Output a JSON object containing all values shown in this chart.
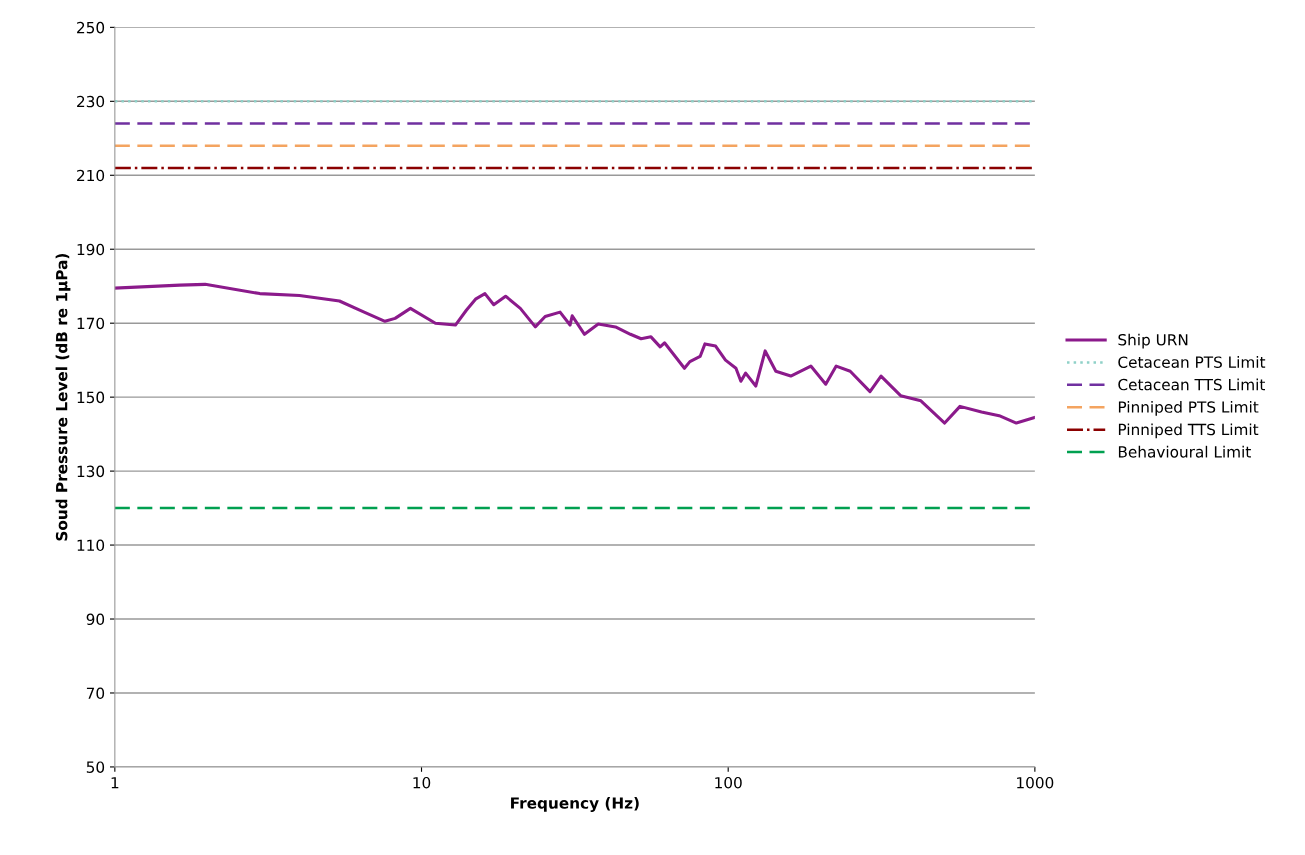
{
  "chart_data": {
    "type": "line",
    "xlabel": "Frequency (Hz)",
    "ylabel": "Soud Pressure Level (dB re 1µPa)",
    "log": "x",
    "xlim": [
      1,
      1000
    ],
    "xticks": [
      1,
      10,
      100,
      1000
    ],
    "ylim": [
      50,
      250
    ],
    "yticks": [
      50,
      70,
      90,
      110,
      130,
      150,
      170,
      190,
      210,
      230,
      250
    ],
    "grid": "y",
    "legend": "right",
    "series": [
      {
        "name": "Ship URN",
        "color": "#8b1a8b",
        "line_style": "solid",
        "x": [
          1,
          1.63,
          1.97,
          2.97,
          4.0,
          5.4,
          6.5,
          7.6,
          8.2,
          9.2,
          11.1,
          12.9,
          14.0,
          15,
          16.1,
          17.2,
          18.8,
          21,
          23.5,
          25.3,
          28.3,
          30.5,
          31,
          34,
          37.7,
          42.9,
          48,
          52,
          56,
          60,
          62,
          72,
          75,
          81,
          84,
          91,
          98,
          106,
          110,
          114,
          123,
          132,
          143,
          160,
          186,
          208,
          225,
          250,
          290,
          315,
          365,
          425,
          508,
          570,
          670,
          765,
          870,
          1000
        ],
        "values": [
          179.5,
          180.3,
          180.5,
          178,
          177.5,
          176,
          173,
          170.5,
          171.3,
          174,
          170,
          169.5,
          173.5,
          176.5,
          178,
          175,
          177.3,
          174,
          169,
          171.8,
          173,
          169.5,
          172,
          167,
          169.8,
          169,
          167,
          165.8,
          166.3,
          163.6,
          164.7,
          157.8,
          159.6,
          161,
          164.4,
          163.8,
          160,
          157.8,
          154.3,
          156.5,
          153,
          162.5,
          157,
          155.7,
          158.4,
          153.5,
          158.4,
          157,
          151.5,
          155.7,
          150.4,
          149,
          143,
          147.5,
          146,
          145,
          143,
          144.5
        ]
      },
      {
        "name": "Cetacean PTS Limit",
        "color": "#8fd1c8",
        "line_style": "dotted",
        "x": [
          1,
          1000
        ],
        "values": [
          230,
          230
        ]
      },
      {
        "name": "Cetacean TTS Limit",
        "color": "#7030a0",
        "line_style": "dashed",
        "x": [
          1,
          1000
        ],
        "values": [
          224,
          224
        ]
      },
      {
        "name": "Pinniped PTS Limit",
        "color": "#f4a460",
        "line_style": "dashed",
        "x": [
          1,
          1000
        ],
        "values": [
          218,
          218
        ]
      },
      {
        "name": "Pinniped TTS Limit",
        "color": "#8b0000",
        "line_style": "dashdot",
        "x": [
          1,
          1000
        ],
        "values": [
          212,
          212
        ]
      },
      {
        "name": "Behavioural Limit",
        "color": "#00a050",
        "line_style": "dashed",
        "x": [
          1,
          1000
        ],
        "values": [
          120,
          120
        ]
      }
    ]
  }
}
